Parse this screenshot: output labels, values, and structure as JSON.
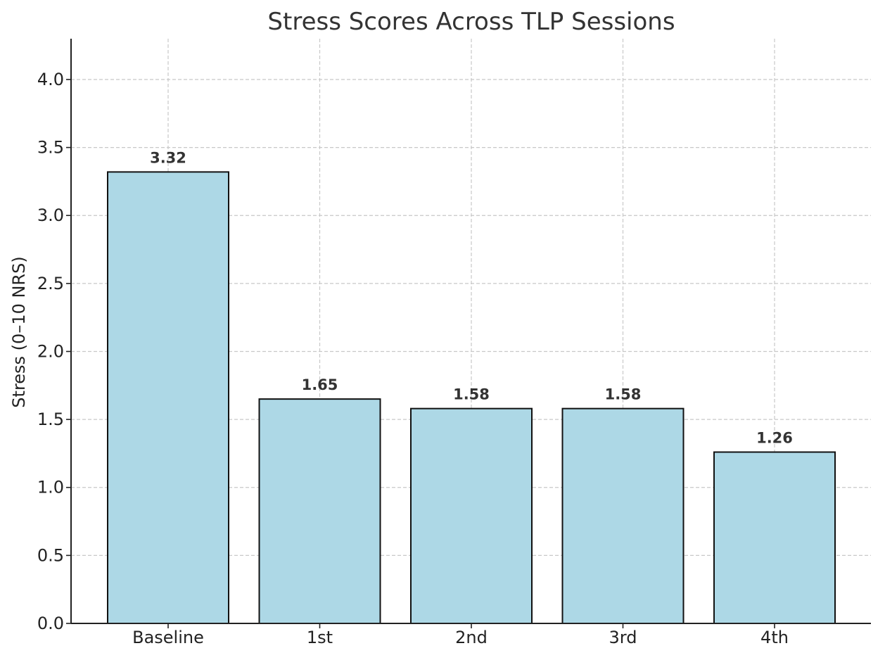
{
  "chart_data": {
    "type": "bar",
    "title": "Stress Scores Across TLP Sessions",
    "xlabel": "",
    "ylabel": "Stress (0–10 NRS)",
    "categories": [
      "Baseline",
      "1st",
      "2nd",
      "3rd",
      "4th"
    ],
    "values": [
      3.32,
      1.65,
      1.58,
      1.58,
      1.26
    ],
    "data_labels": [
      "3.32",
      "1.65",
      "1.58",
      "1.58",
      "1.26"
    ],
    "ylim": [
      0,
      4.3
    ],
    "yticks": [
      0.0,
      0.5,
      1.0,
      1.5,
      2.0,
      2.5,
      3.0,
      3.5,
      4.0
    ],
    "ytick_labels": [
      "0.0",
      "0.5",
      "1.0",
      "1.5",
      "2.0",
      "2.5",
      "3.0",
      "3.5",
      "4.0"
    ],
    "grid": true,
    "legend": "none",
    "colors": {
      "bar_fill": "#add8e6",
      "bar_edge": "#111111",
      "grid": "#c8c8c8",
      "text": "#333333"
    }
  }
}
